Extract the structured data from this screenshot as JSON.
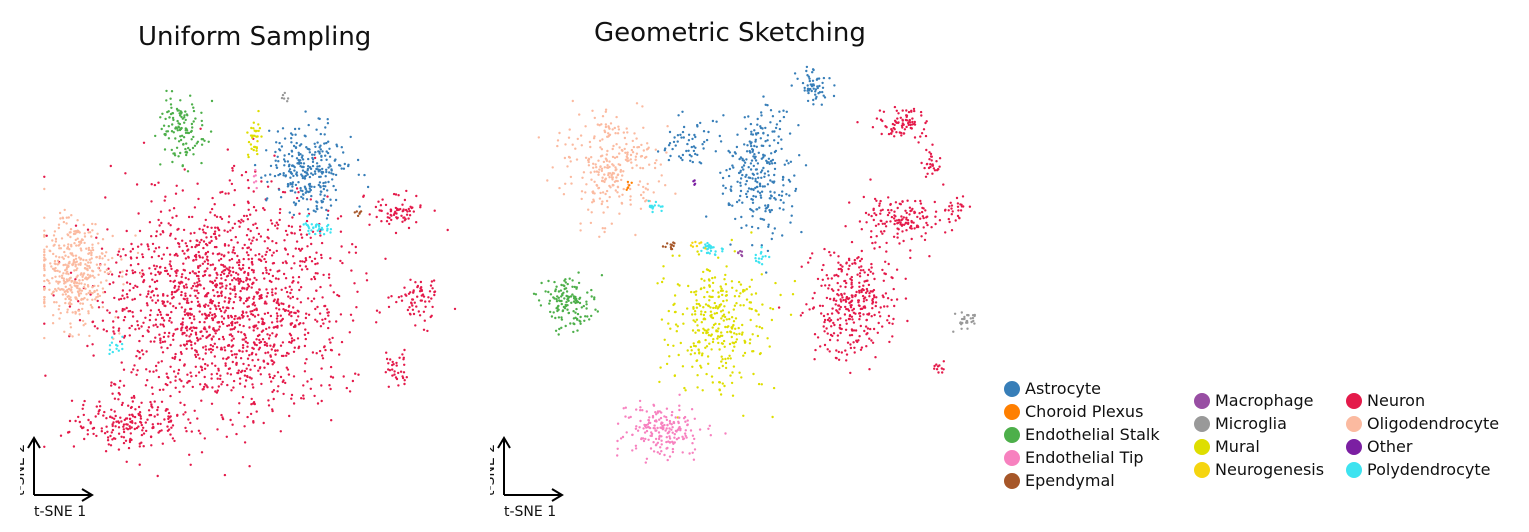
{
  "chart_data": [
    {
      "type": "scatter",
      "title": "Uniform Sampling",
      "xlabel": "t-SNE 1",
      "ylabel": "t-SNE 2",
      "clusters": [
        {
          "label": "Neuron",
          "cx": 0.43,
          "cy": 0.56,
          "rx": 0.32,
          "ry": 0.3,
          "frac": 0.5
        },
        {
          "label": "Neuron",
          "cx": 0.21,
          "cy": 0.86,
          "rx": 0.15,
          "ry": 0.08,
          "frac": 0.06
        },
        {
          "label": "Neuron",
          "cx": 0.83,
          "cy": 0.33,
          "rx": 0.06,
          "ry": 0.04,
          "frac": 0.02
        },
        {
          "label": "Neuron",
          "cx": 0.88,
          "cy": 0.55,
          "rx": 0.05,
          "ry": 0.07,
          "frac": 0.02
        },
        {
          "label": "Neuron",
          "cx": 0.83,
          "cy": 0.72,
          "rx": 0.04,
          "ry": 0.05,
          "frac": 0.01
        },
        {
          "label": "Oligodendrocyte",
          "cx": 0.08,
          "cy": 0.48,
          "rx": 0.1,
          "ry": 0.15,
          "frac": 0.13
        },
        {
          "label": "Astrocyte",
          "cx": 0.62,
          "cy": 0.22,
          "rx": 0.11,
          "ry": 0.12,
          "frac": 0.09
        },
        {
          "label": "Endothelial Stalk",
          "cx": 0.33,
          "cy": 0.13,
          "rx": 0.06,
          "ry": 0.09,
          "frac": 0.04
        },
        {
          "label": "Mural",
          "cx": 0.5,
          "cy": 0.14,
          "rx": 0.02,
          "ry": 0.04,
          "frac": 0.01
        },
        {
          "label": "Polydendrocyte",
          "cx": 0.64,
          "cy": 0.37,
          "rx": 0.05,
          "ry": 0.02,
          "frac": 0.01
        },
        {
          "label": "Polydendrocyte",
          "cx": 0.17,
          "cy": 0.67,
          "rx": 0.02,
          "ry": 0.02,
          "frac": 0.004
        },
        {
          "label": "Ependymal",
          "cx": 0.74,
          "cy": 0.33,
          "rx": 0.01,
          "ry": 0.01,
          "frac": 0.002
        },
        {
          "label": "Microglia",
          "cx": 0.57,
          "cy": 0.05,
          "rx": 0.01,
          "ry": 0.02,
          "frac": 0.002
        },
        {
          "label": "Endothelial Tip",
          "cx": 0.5,
          "cy": 0.25,
          "rx": 0.01,
          "ry": 0.02,
          "frac": 0.002
        }
      ]
    },
    {
      "type": "scatter",
      "title": "Geometric Sketching",
      "xlabel": "t-SNE 1",
      "ylabel": "t-SNE 2",
      "clusters": [
        {
          "label": "Astrocyte",
          "cx": 0.51,
          "cy": 0.27,
          "rx": 0.08,
          "ry": 0.17,
          "frac": 0.1
        },
        {
          "label": "Astrocyte",
          "cx": 0.62,
          "cy": 0.06,
          "rx": 0.04,
          "ry": 0.04,
          "frac": 0.02
        },
        {
          "label": "Astrocyte",
          "cx": 0.36,
          "cy": 0.2,
          "rx": 0.05,
          "ry": 0.06,
          "frac": 0.02
        },
        {
          "label": "Oligodendrocyte",
          "cx": 0.2,
          "cy": 0.25,
          "rx": 0.11,
          "ry": 0.14,
          "frac": 0.1
        },
        {
          "label": "Neuron",
          "cx": 0.7,
          "cy": 0.58,
          "rx": 0.1,
          "ry": 0.15,
          "frac": 0.12
        },
        {
          "label": "Neuron",
          "cx": 0.8,
          "cy": 0.38,
          "rx": 0.09,
          "ry": 0.06,
          "frac": 0.05
        },
        {
          "label": "Neuron",
          "cx": 0.8,
          "cy": 0.15,
          "rx": 0.06,
          "ry": 0.04,
          "frac": 0.03
        },
        {
          "label": "Neuron",
          "cx": 0.86,
          "cy": 0.25,
          "rx": 0.02,
          "ry": 0.04,
          "frac": 0.01
        },
        {
          "label": "Neuron",
          "cx": 0.91,
          "cy": 0.36,
          "rx": 0.03,
          "ry": 0.05,
          "frac": 0.01
        },
        {
          "label": "Neuron",
          "cx": 0.88,
          "cy": 0.73,
          "rx": 0.02,
          "ry": 0.02,
          "frac": 0.004
        },
        {
          "label": "Mural",
          "cx": 0.42,
          "cy": 0.63,
          "rx": 0.11,
          "ry": 0.17,
          "frac": 0.12
        },
        {
          "label": "Endothelial Tip",
          "cx": 0.31,
          "cy": 0.88,
          "rx": 0.09,
          "ry": 0.07,
          "frac": 0.07
        },
        {
          "label": "Endothelial Stalk",
          "cx": 0.12,
          "cy": 0.58,
          "rx": 0.06,
          "ry": 0.07,
          "frac": 0.05
        },
        {
          "label": "Microglia",
          "cx": 0.93,
          "cy": 0.62,
          "rx": 0.03,
          "ry": 0.04,
          "frac": 0.01
        },
        {
          "label": "Polydendrocyte",
          "cx": 0.41,
          "cy": 0.45,
          "rx": 0.03,
          "ry": 0.02,
          "frac": 0.01
        },
        {
          "label": "Polydendrocyte",
          "cx": 0.3,
          "cy": 0.35,
          "rx": 0.02,
          "ry": 0.02,
          "frac": 0.005
        },
        {
          "label": "Polydendrocyte",
          "cx": 0.51,
          "cy": 0.47,
          "rx": 0.02,
          "ry": 0.02,
          "frac": 0.005
        },
        {
          "label": "Ependymal",
          "cx": 0.33,
          "cy": 0.44,
          "rx": 0.02,
          "ry": 0.01,
          "frac": 0.004
        },
        {
          "label": "Neurogenesis",
          "cx": 0.38,
          "cy": 0.44,
          "rx": 0.02,
          "ry": 0.01,
          "frac": 0.003
        },
        {
          "label": "Macrophage",
          "cx": 0.47,
          "cy": 0.46,
          "rx": 0.01,
          "ry": 0.01,
          "frac": 0.002
        },
        {
          "label": "Choroid Plexus",
          "cx": 0.24,
          "cy": 0.3,
          "rx": 0.01,
          "ry": 0.01,
          "frac": 0.002
        },
        {
          "label": "Other",
          "cx": 0.38,
          "cy": 0.29,
          "rx": 0.01,
          "ry": 0.01,
          "frac": 0.001
        }
      ]
    }
  ],
  "legend": {
    "columns": [
      [
        {
          "label": "Astrocyte",
          "color": "#377eb8"
        },
        {
          "label": "Choroid Plexus",
          "color": "#ff7f00"
        },
        {
          "label": "Endothelial Stalk",
          "color": "#4daf4a"
        },
        {
          "label": "Endothelial Tip",
          "color": "#f781bf"
        },
        {
          "label": "Ependymal",
          "color": "#a65628"
        }
      ],
      [
        {
          "label": "Macrophage",
          "color": "#984ea3"
        },
        {
          "label": "Microglia",
          "color": "#999999"
        },
        {
          "label": "Mural",
          "color": "#dede00"
        },
        {
          "label": "Neurogenesis",
          "color": "#f5d50f"
        }
      ],
      [
        {
          "label": "Neuron",
          "color": "#e41a4a"
        },
        {
          "label": "Oligodendrocyte",
          "color": "#fbbaa0"
        },
        {
          "label": "Other",
          "color": "#7b1fa2"
        },
        {
          "label": "Polydendrocyte",
          "color": "#3de3f0"
        }
      ]
    ]
  }
}
